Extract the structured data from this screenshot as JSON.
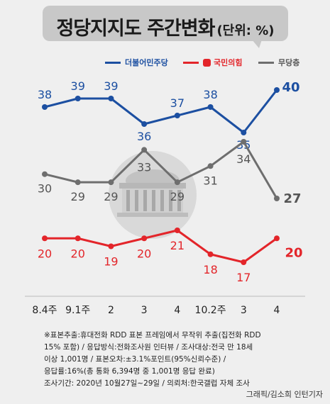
{
  "chart_data": {
    "type": "line",
    "title": "정당지지도 주간변화",
    "unit": "(단위: %)",
    "categories": [
      "8.4주",
      "9.1주",
      "2",
      "3",
      "4",
      "10.2주",
      "3",
      "4"
    ],
    "series": [
      {
        "name": "더불어민주당",
        "color": "#1c4fa1",
        "values": [
          38,
          39,
          39,
          36,
          37,
          38,
          35,
          40
        ]
      },
      {
        "name": "국민의힘",
        "color": "#e3252a",
        "values": [
          20,
          20,
          19,
          20,
          21,
          18,
          17,
          20
        ]
      },
      {
        "name": "무당층",
        "color": "#6e6e6e",
        "values": [
          30,
          29,
          29,
          33,
          29,
          31,
          34,
          27
        ]
      }
    ],
    "grid": false,
    "legend": "top"
  },
  "note": [
    "※표본추출:휴대전화 RDD 표본 프레임에서 무작위 추출(집전화 RDD",
    "15% 포함) / 응답방식:전화조사원 인터뷰 / 조사대상:전국 만 18세",
    "이상 1,001명 / 표본오차:±3.1%포인트(95%신뢰수준) /",
    "응답률:16%(총 통화 6,394명 중 1,001명 응답 완료)",
    "조사기간: 2020년 10월27일~29일 / 의뢰처:한국갤럽 자체 조사"
  ],
  "credit": "그래픽/김소희 인턴기자"
}
